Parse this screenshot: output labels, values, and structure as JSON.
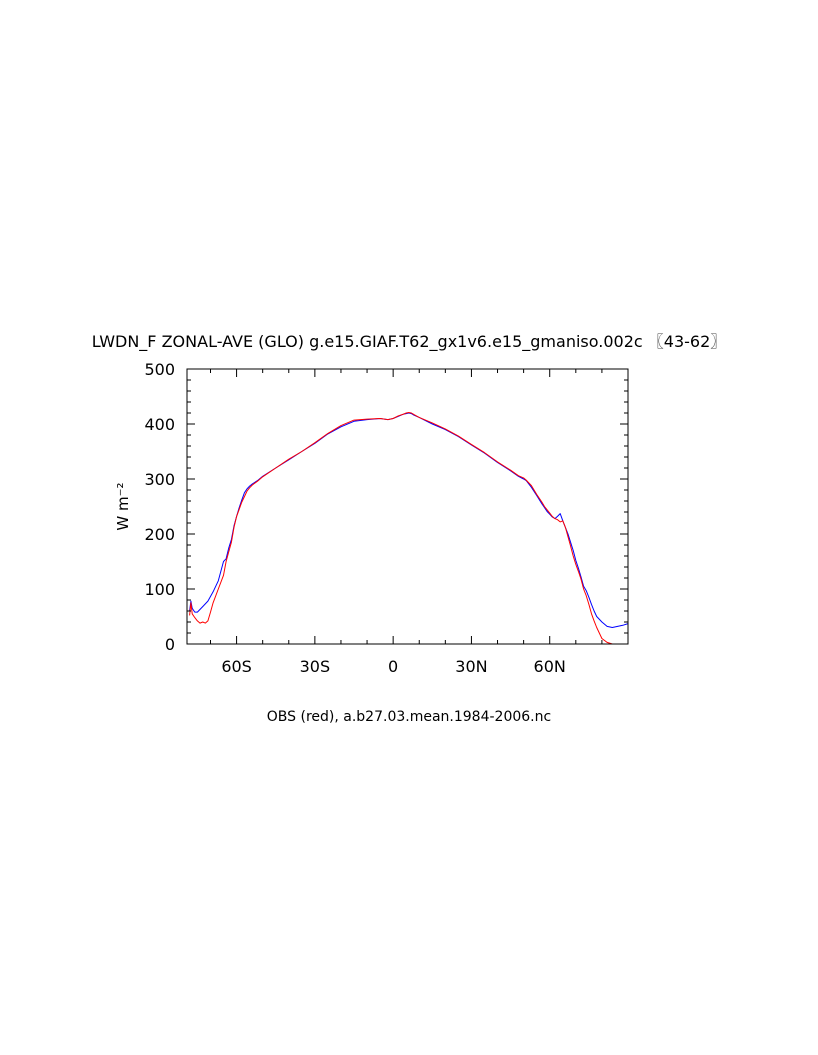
{
  "chart_data": {
    "type": "line",
    "title": "LWDN_F ZONAL-AVE (GLO) g.e15.GIAF.T62_gx1v6.e15_gmaniso.002c 〖43-62〗",
    "xlabel": "",
    "ylabel": "W m⁻²",
    "footer": "OBS (red), a.b27.03.mean.1984-2006.nc",
    "xlim": [
      -79,
      90
    ],
    "ylim": [
      0,
      500
    ],
    "x_ticks": [
      -60,
      -30,
      0,
      30,
      60
    ],
    "x_tick_labels": [
      "60S",
      "30S",
      "0",
      "30N",
      "60N"
    ],
    "y_ticks": [
      0,
      100,
      200,
      300,
      400,
      500
    ],
    "y_tick_labels": [
      "0",
      "100",
      "200",
      "300",
      "400",
      "500"
    ],
    "grid": false,
    "series": [
      {
        "color": "#0000ff",
        "x": [
          -78,
          -77.5,
          -77,
          -76,
          -75,
          -73,
          -71,
          -69,
          -67,
          -65,
          -64,
          -63,
          -62,
          -61,
          -60,
          -59,
          -58,
          -57,
          -56,
          -55,
          -54,
          -52,
          -50,
          -45,
          -40,
          -35,
          -30,
          -25,
          -20,
          -15,
          -10,
          -5,
          -2,
          0,
          2,
          4,
          5,
          6,
          7,
          8,
          10,
          15,
          20,
          25,
          30,
          35,
          40,
          45,
          48,
          50,
          51,
          53,
          55,
          57,
          58,
          59,
          60,
          61,
          62,
          63,
          64,
          65,
          66,
          67,
          68,
          69,
          70,
          71,
          72,
          73,
          74,
          75,
          76,
          77,
          78,
          80,
          82,
          84,
          86,
          88,
          90
        ],
        "y": [
          60,
          78,
          65,
          58,
          58,
          68,
          78,
          95,
          115,
          150,
          155,
          175,
          190,
          215,
          232,
          248,
          262,
          275,
          282,
          287,
          291,
          297,
          305,
          320,
          335,
          350,
          365,
          382,
          395,
          405,
          408,
          410,
          408,
          410,
          414,
          418,
          419,
          420,
          419,
          416,
          412,
          400,
          390,
          377,
          362,
          347,
          330,
          315,
          305,
          300,
          297,
          285,
          270,
          255,
          248,
          241,
          236,
          231,
          228,
          232,
          237,
          224,
          212,
          200,
          185,
          170,
          152,
          138,
          122,
          105,
          97,
          85,
          72,
          60,
          50,
          40,
          32,
          30,
          32,
          34,
          37
        ]
      },
      {
        "color": "#ff0000",
        "x": [
          -78,
          -77.5,
          -77,
          -76,
          -75,
          -74,
          -73,
          -72,
          -71,
          -70,
          -69,
          -67,
          -65,
          -64,
          -63,
          -62,
          -61,
          -60,
          -59,
          -58,
          -57,
          -56,
          -55,
          -54,
          -52,
          -50,
          -45,
          -40,
          -35,
          -30,
          -25,
          -20,
          -15,
          -10,
          -5,
          -2,
          0,
          2,
          4,
          5,
          6,
          7,
          8,
          10,
          15,
          20,
          25,
          30,
          35,
          40,
          45,
          48,
          50,
          51,
          53,
          55,
          57,
          58,
          59,
          60,
          61,
          62,
          63,
          64,
          65,
          66,
          67,
          68,
          69,
          70,
          71,
          72,
          73,
          74,
          75,
          76,
          77,
          78,
          79,
          80,
          82,
          84,
          86,
          88,
          90
        ],
        "y": [
          52,
          75,
          55,
          48,
          42,
          38,
          40,
          38,
          42,
          58,
          75,
          100,
          125,
          150,
          168,
          185,
          212,
          232,
          245,
          258,
          268,
          278,
          284,
          289,
          296,
          304,
          320,
          336,
          350,
          366,
          383,
          397,
          407,
          409,
          410,
          408,
          410,
          415,
          418,
          420,
          421,
          420,
          417,
          412,
          402,
          391,
          378,
          363,
          348,
          331,
          316,
          306,
          302,
          298,
          288,
          272,
          258,
          250,
          244,
          238,
          232,
          228,
          226,
          222,
          224,
          212,
          195,
          178,
          160,
          145,
          132,
          118,
          100,
          88,
          72,
          55,
          42,
          30,
          20,
          10,
          3,
          0,
          0,
          0,
          0
        ]
      }
    ]
  }
}
